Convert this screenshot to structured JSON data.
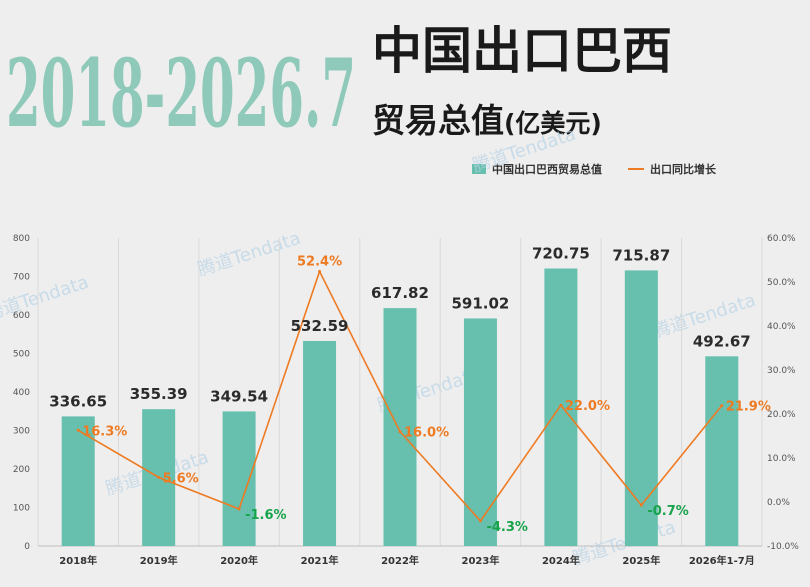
{
  "title": {
    "years": "2018-2026.7",
    "line1": "中国出口巴西",
    "line2": "贸易总值",
    "unit": "(亿美元)"
  },
  "watermark": "腾道Tendata",
  "colors": {
    "bar": "#67bfae",
    "line": "#ee7a22",
    "positive_label": "#ee7a22",
    "negative_label": "#17a34a",
    "grid": "#d9d9d9"
  },
  "chart_data": {
    "type": "bar+line",
    "categories": [
      "2018年",
      "2019年",
      "2020年",
      "2021年",
      "2022年",
      "2023年",
      "2024年",
      "2025年",
      "2026年1-7月"
    ],
    "series": [
      {
        "name": "中国出口巴西贸易总值",
        "type": "bar",
        "axis": "left",
        "values": [
          336.65,
          355.39,
          349.54,
          532.59,
          617.82,
          591.02,
          720.75,
          715.87,
          492.67
        ],
        "labels": [
          "336.65",
          "355.39",
          "349.54",
          "532.59",
          "617.82",
          "591.02",
          "720.75",
          "715.87",
          "492.67"
        ]
      },
      {
        "name": "出口同比增长",
        "type": "line",
        "axis": "right",
        "values": [
          16.3,
          5.6,
          -1.6,
          52.4,
          16.0,
          -4.3,
          22.0,
          -0.7,
          21.9
        ],
        "labels": [
          "16.3%",
          "5.6%",
          "-1.6%",
          "52.4%",
          "16.0%",
          "-4.3%",
          "22.0%",
          "-0.7%",
          "21.9%"
        ]
      }
    ],
    "y_left": {
      "min": 0,
      "max": 800,
      "ticks": [
        "0",
        "100",
        "200",
        "300",
        "400",
        "500",
        "600",
        "700",
        "800"
      ]
    },
    "y_right": {
      "min": -10,
      "max": 60,
      "ticks": [
        "-10.0%",
        "0.0%",
        "10.0%",
        "20.0%",
        "30.0%",
        "40.0%",
        "50.0%",
        "60.0%"
      ]
    },
    "legend_position": "top-right",
    "grid": "vertical"
  }
}
